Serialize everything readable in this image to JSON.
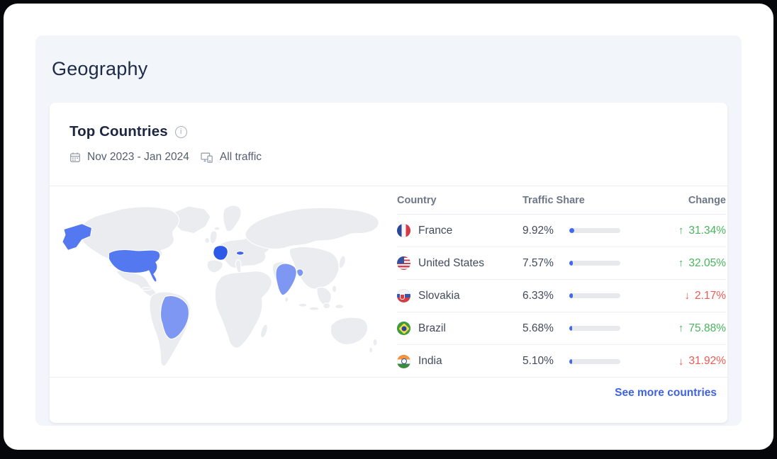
{
  "page": {
    "title": "Geography"
  },
  "panel": {
    "title": "Top Countries",
    "date_range": "Nov 2023 - Jan 2024",
    "traffic_label": "All traffic",
    "see_more": "See more countries"
  },
  "table": {
    "headers": {
      "country": "Country",
      "share": "Traffic Share",
      "change": "Change"
    },
    "arrow_up": "↑",
    "arrow_down": "↓",
    "rows": [
      {
        "country": "France",
        "flag": "france-flag",
        "share_label": "9.92%",
        "share_value": 9.92,
        "change_label": "31.34%",
        "direction": "up"
      },
      {
        "country": "United States",
        "flag": "united-states-flag",
        "share_label": "7.57%",
        "share_value": 7.57,
        "change_label": "32.05%",
        "direction": "up"
      },
      {
        "country": "Slovakia",
        "flag": "slovakia-flag",
        "share_label": "6.33%",
        "share_value": 6.33,
        "change_label": "2.17%",
        "direction": "down"
      },
      {
        "country": "Brazil",
        "flag": "brazil-flag",
        "share_label": "5.68%",
        "share_value": 5.68,
        "change_label": "75.88%",
        "direction": "up"
      },
      {
        "country": "India",
        "flag": "india-flag",
        "share_label": "5.10%",
        "share_value": 5.1,
        "change_label": "31.92%",
        "direction": "down"
      }
    ]
  },
  "map": {
    "land_color": "#eaecef",
    "border_color": "#ffffff",
    "highlights": [
      {
        "country": "France",
        "color": "#2c59e8"
      },
      {
        "country": "United States",
        "color": "#5478f0"
      },
      {
        "country": "Slovakia",
        "color": "#4065ec"
      },
      {
        "country": "Brazil",
        "color": "#7e97f3"
      },
      {
        "country": "India",
        "color": "#7e97f3"
      }
    ]
  },
  "colors": {
    "positive": "#47b55b",
    "negative": "#ee5a51",
    "bar_fill": "#3f69f2",
    "bar_track": "#e7e9ed",
    "link": "#3f63e0"
  }
}
